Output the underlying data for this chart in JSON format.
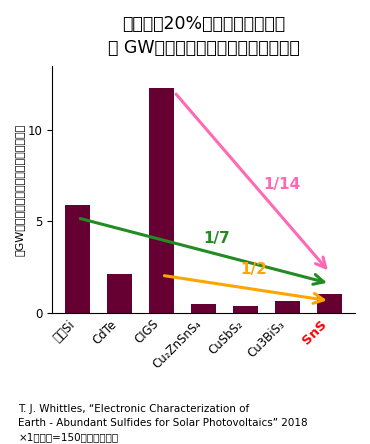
{
  "title_line1": "変換効率20%を仮定した場合の",
  "title_line2": "１ GWモジュールのマテリアルコスト",
  "ylabel": "１GWあたりのマテリアルコスト（億円）",
  "categories": [
    "結晶Si",
    "CdTe",
    "CIGS",
    "Cu₂ZnSnS₄",
    "CuSbS₂",
    "Cu3BiS₃",
    "SnS"
  ],
  "values": [
    5.9,
    2.1,
    12.3,
    0.5,
    0.35,
    0.65,
    1.0
  ],
  "bar_color": "#660033",
  "background": "#ffffff",
  "arrow_pink_color": "#ff69b4",
  "arrow_green_color": "#228B22",
  "arrow_orange_color": "#FFA500",
  "label_1_14": "1/14",
  "label_1_7": "1/7",
  "label_1_2": "1/2",
  "footnote_line1": "T. J. Whittles, “Electronic Characterization of",
  "footnote_line2": "Earth - Abundant Sulfides for Solar Photovoltaics” 2018",
  "footnote_line3": "×1ボンド=150円として計算",
  "ylim": [
    0,
    13.5
  ],
  "title_fontsize": 12.5,
  "tick_fontsize": 8.5,
  "ylabel_fontsize": 8,
  "footnote_fontsize": 7.5,
  "arrow_label_fontsize": 11
}
